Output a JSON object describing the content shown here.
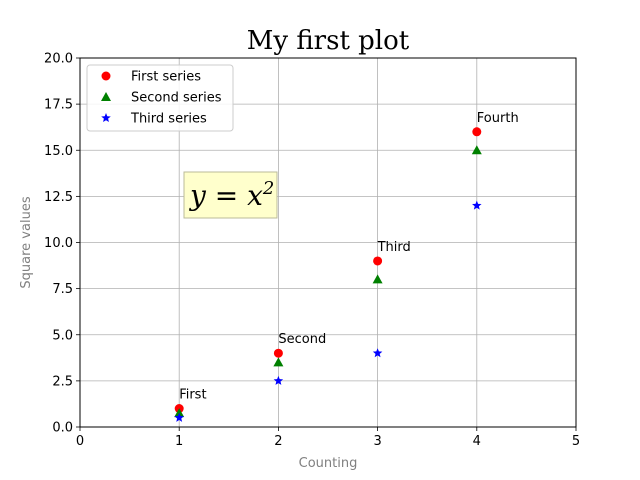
{
  "chart_data": {
    "type": "scatter",
    "title": "My first plot",
    "xlabel": "Counting",
    "ylabel": "Square values",
    "xlim": [
      0,
      5
    ],
    "ylim": [
      0,
      20
    ],
    "xticks": [
      "0",
      "1",
      "2",
      "3",
      "4",
      "5"
    ],
    "yticks": [
      "0.0",
      "2.5",
      "5.0",
      "7.5",
      "10.0",
      "12.5",
      "15.0",
      "17.5",
      "20.0"
    ],
    "grid": true,
    "legend_position": "top-left",
    "series": [
      {
        "name": "First series",
        "color": "#ff0000",
        "marker": "circle",
        "x": [
          1,
          2,
          3,
          4
        ],
        "y": [
          1,
          4,
          9,
          16
        ]
      },
      {
        "name": "Second series",
        "color": "#008000",
        "marker": "triangle",
        "x": [
          1,
          2,
          3,
          4
        ],
        "y": [
          0.75,
          3.5,
          8,
          15
        ]
      },
      {
        "name": "Third series",
        "color": "#0000ff",
        "marker": "star",
        "x": [
          1,
          2,
          3,
          4
        ],
        "y": [
          0.5,
          2.5,
          4,
          12
        ]
      }
    ],
    "annotations": [
      {
        "text": "First",
        "x": 1,
        "y": 1
      },
      {
        "text": "Second",
        "x": 2,
        "y": 4
      },
      {
        "text": "Third",
        "x": 3,
        "y": 9
      },
      {
        "text": "Fourth",
        "x": 4,
        "y": 16
      }
    ],
    "formula": {
      "base": "y = x",
      "exponent": "2",
      "background": "#ffffcc"
    }
  }
}
